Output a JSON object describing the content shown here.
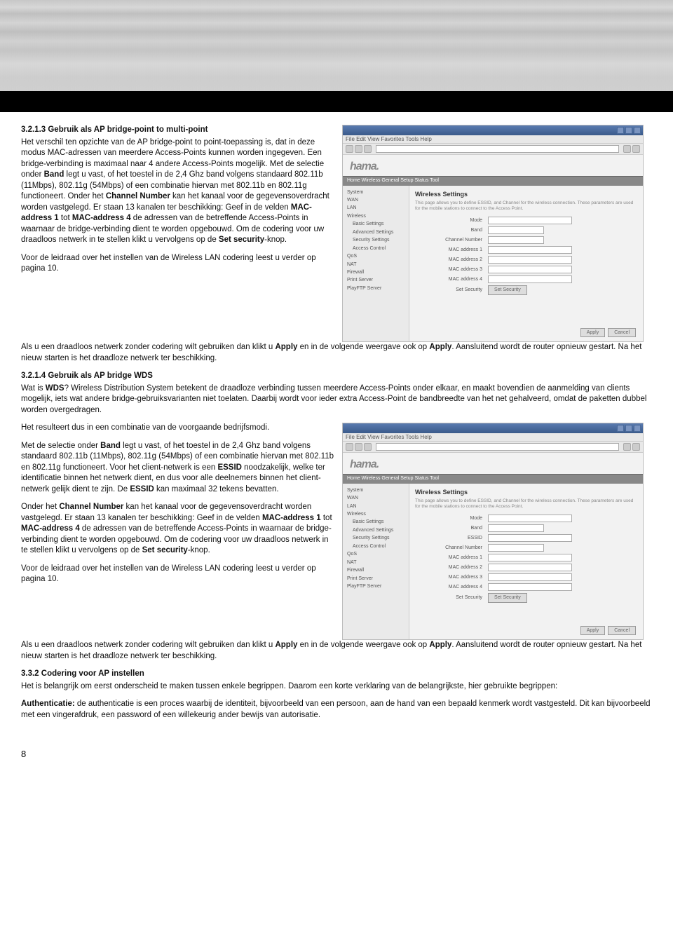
{
  "section1": {
    "heading": "3.2.1.3 Gebruik als AP bridge-point to multi-point",
    "para1_a": "Het verschil ten opzichte van de AP bridge-point to point-toepassing is, dat in deze modus MAC-adressen van meerdere Access-Points kunnen worden ingegeven. Een bridge-verbinding is maximaal naar 4 andere Access-Points mogelijk. Met de selectie onder ",
    "bold_band": "Band",
    "para1_b": " legt u vast, of het toestel in de 2,4 Ghz band volgens standaard 802.11b (11Mbps), 802.11g (54Mbps) of een combinatie hiervan met 802.11b en 802.11g functioneert. Onder het ",
    "bold_channel": "Channel Number",
    "para1_c": " kan het kanaal voor de gegevensoverdracht worden vastgelegd. Er staan 13 kanalen ter beschikking: Geef in de velden ",
    "bold_mac1": "MAC-address 1",
    "para1_d": " tot ",
    "bold_mac4": "MAC-address 4",
    "para1_e": " de adressen van de betreffende Access-Points in waarnaar de bridge-verbinding dient te worden opgebouwd. Om de codering voor uw draadloos netwerk in te stellen klikt u vervolgens op de ",
    "bold_setsec": "Set security",
    "para1_f": "-knop.",
    "para2": "Voor de leidraad over het instellen van de Wireless LAN codering leest u verder op pagina 10.",
    "para3_a": "Als u een draadloos netwerk zonder codering wilt gebruiken dan klikt u ",
    "bold_apply": "Apply",
    "para3_b": " en in de volgende weergave ook op ",
    "para3_c": ". Aansluitend wordt de router opnieuw gestart. Na het nieuw starten is het draadloze netwerk ter beschikking."
  },
  "section2": {
    "heading": "3.2.1.4 Gebruik als AP bridge WDS",
    "para1_a": "Wat is ",
    "bold_wds": "WDS",
    "para1_b": "? Wireless Distribution System betekent de draadloze verbinding tussen meerdere Access-Points onder elkaar, en maakt bovendien de aanmelding van clients mogelijk, iets wat andere bridge-gebruiksvarianten niet toelaten. Daarbij wordt voor ieder extra Access-Point de bandbreedte van het net gehalveerd, omdat de paketten dubbel worden overgedragen.",
    "para2": "Het resulteert dus in een combinatie van de voorgaande bedrijfsmodi.",
    "para3_a": "Met de selectie onder ",
    "bold_band": "Band",
    "para3_b": " legt u vast, of het toestel in de 2,4 Ghz band volgens standaard 802.11b (11Mbps), 802.11g (54Mbps) of een combinatie hiervan met 802.11b en 802.11g functioneert. Voor het client-netwerk is een ",
    "bold_essid": "ESSID",
    "para3_c": " noodzakelijk, welke ter identificatie binnen het netwerk dient, en dus voor alle deelnemers binnen het client-netwerk gelijk dient te zijn. De ",
    "para3_d": " kan maximaal 32 tekens bevatten.",
    "para4_a": "Onder het ",
    "bold_channel": "Channel Number",
    "para4_b": " kan het kanaal voor de gegevensoverdracht worden vastgelegd. Er staan 13 kanalen ter beschikking: Geef in de velden ",
    "bold_mac1": "MAC-address 1",
    "para4_c": " tot ",
    "bold_mac4": "MAC-address 4",
    "para4_d": " de adressen van de betreffende Access-Points in waarnaar de bridge-verbinding dient te worden opgebouwd. Om de codering voor uw draadloos netwerk in te stellen klikt u vervolgens op de ",
    "bold_setsec": "Set security",
    "para4_e": "-knop.",
    "para5": "Voor de leidraad over het instellen van de Wireless LAN codering leest u verder op pagina 10.",
    "para6_a": "Als u een draadloos netwerk zonder codering wilt gebruiken dan klikt u ",
    "bold_apply": "Apply",
    "para6_b": " en in de volgende weergave ook op ",
    "para6_c": ". Aansluitend wordt de router opnieuw gestart. Na het nieuw starten is het draadloze netwerk ter beschikking."
  },
  "section3": {
    "heading": "3.3.2 Codering voor AP instellen",
    "para1": "Het is belangrijk om eerst onderscheid te maken tussen enkele begrippen. Daarom een korte verklaring van de belangrijkste, hier gebruikte begrippen:",
    "para2_a": "Authenticatie:",
    "para2_b": " de authenticatie is een proces waarbij de identiteit, bijvoorbeeld van een persoon, aan de hand van een bepaald kenmerk wordt vastgesteld. Dit kan bijvoorbeeld met een vingerafdruk, een password of een willekeurig ander bewijs van autorisatie."
  },
  "page_number": "8",
  "screenshot": {
    "logo": "hama.",
    "panel_title": "Wireless Settings",
    "panel_desc": "This page allows you to define ESSID, and Channel for the wireless connection. These parameters are used for the mobile stations to connect to the Access Point.",
    "menu": "File  Edit  View  Favorites  Tools  Help",
    "side": [
      "System",
      "WAN",
      "LAN",
      "Wireless",
      "  Basic Settings",
      "  Advanced Settings",
      "  Security Settings",
      "  Access Control",
      "QoS",
      "NAT",
      "Firewall",
      "Print Server",
      "PlayFTP Server"
    ],
    "rows1": [
      "Mode",
      "Band",
      "Channel Number",
      "MAC address 1",
      "MAC address 2",
      "MAC address 3",
      "MAC address 4",
      "Set Security"
    ],
    "rows2": [
      "Mode",
      "Band",
      "ESSID",
      "Channel Number",
      "MAC address 1",
      "MAC address 2",
      "MAC address 3",
      "MAC address 4",
      "Set Security"
    ],
    "btn_apply": "Apply",
    "btn_cancel": "Cancel",
    "tabs": "Home   Wireless   General Setup   Status   Tool"
  }
}
